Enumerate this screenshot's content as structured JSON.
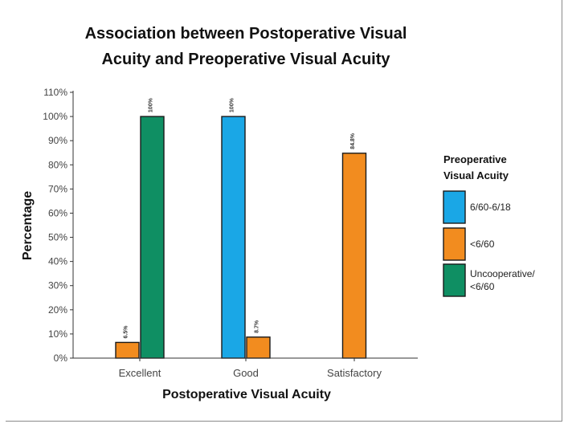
{
  "chart_data": {
    "type": "bar",
    "title": [
      "Association between Postoperative Visual",
      "Acuity and Preoperative Visual Acuity"
    ],
    "xlabel": "Postoperative Visual Acuity",
    "ylabel": "Percentage",
    "categories": [
      "Excellent",
      "Good",
      "Satisfactory"
    ],
    "ylim": [
      0,
      110
    ],
    "yticks": [
      "0%",
      "10%",
      "20%",
      "30%",
      "40%",
      "50%",
      "60%",
      "70%",
      "80%",
      "90%",
      "100%",
      "110%"
    ],
    "legend_title": [
      "Preoperative",
      "Visual Acuity"
    ],
    "legend_placement": "right",
    "series": [
      {
        "name": "6/60-6/18",
        "color": "#1aa7e6",
        "values": [
          null,
          100,
          null
        ],
        "labels": [
          "",
          "100%",
          ""
        ]
      },
      {
        "name": "<6/60",
        "color": "#f28c1f",
        "values": [
          6.5,
          8.7,
          84.8
        ],
        "labels": [
          "6.5%",
          "8.7%",
          "84.8%"
        ]
      },
      {
        "name": "Uncooperative/ <6/60",
        "legend_lines": [
          "Uncooperative/",
          "<6/60"
        ],
        "color": "#0f8f63",
        "values": [
          100,
          null,
          null
        ],
        "labels": [
          "100%",
          "",
          ""
        ]
      }
    ]
  }
}
